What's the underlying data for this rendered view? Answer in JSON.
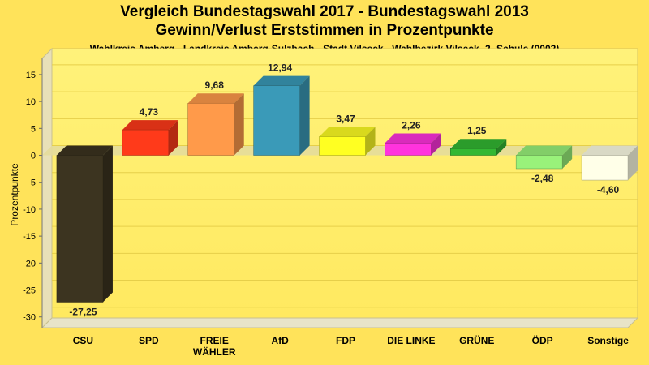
{
  "chart_data": {
    "type": "bar",
    "title": "Vergleich Bundestagswahl 2017 - Bundestagswahl 2013",
    "title_line2": "Gewinn/Verlust Erststimmen in Prozentpunkte",
    "subtitle": "Wahlkreis Amberg - Landkreis Amberg-Sulzbach - Stadt Vilseck - Wahlbezirk Vilseck -2- Schule (0002)",
    "ylabel": "Prozentpunkte",
    "xlabel": "",
    "ylim": [
      -32,
      18
    ],
    "yticks": [
      15,
      10,
      5,
      0,
      -5,
      -10,
      -15,
      -20,
      -25,
      -30
    ],
    "grid": true,
    "categories": [
      "CSU",
      "SPD",
      "FREIE WÄHLER",
      "AfD",
      "FDP",
      "DIE LINKE",
      "GRÜNE",
      "ÖDP",
      "Sonstige"
    ],
    "category_lines": [
      [
        "CSU"
      ],
      [
        "SPD"
      ],
      [
        "FREIE",
        "WÄHLER"
      ],
      [
        "AfD"
      ],
      [
        "FDP"
      ],
      [
        "DIE LINKE"
      ],
      [
        "GRÜNE"
      ],
      [
        "ÖDP"
      ],
      [
        "Sonstige"
      ]
    ],
    "values": [
      -27.25,
      4.73,
      9.68,
      12.94,
      3.47,
      2.26,
      1.25,
      -2.48,
      -4.6
    ],
    "value_labels": [
      "-27,25",
      "4,73",
      "9,68",
      "12,94",
      "3,47",
      "2,26",
      "1,25",
      "-2,48",
      "-4,60"
    ],
    "colors": [
      "#3c3420",
      "#ff3a1a",
      "#ff9a4a",
      "#3a9ab8",
      "#ffff22",
      "#ff33dd",
      "#33b833",
      "#99f27a",
      "#ffffe8"
    ],
    "background_color": "#ffe35a",
    "plot_color": "#fff07a"
  }
}
